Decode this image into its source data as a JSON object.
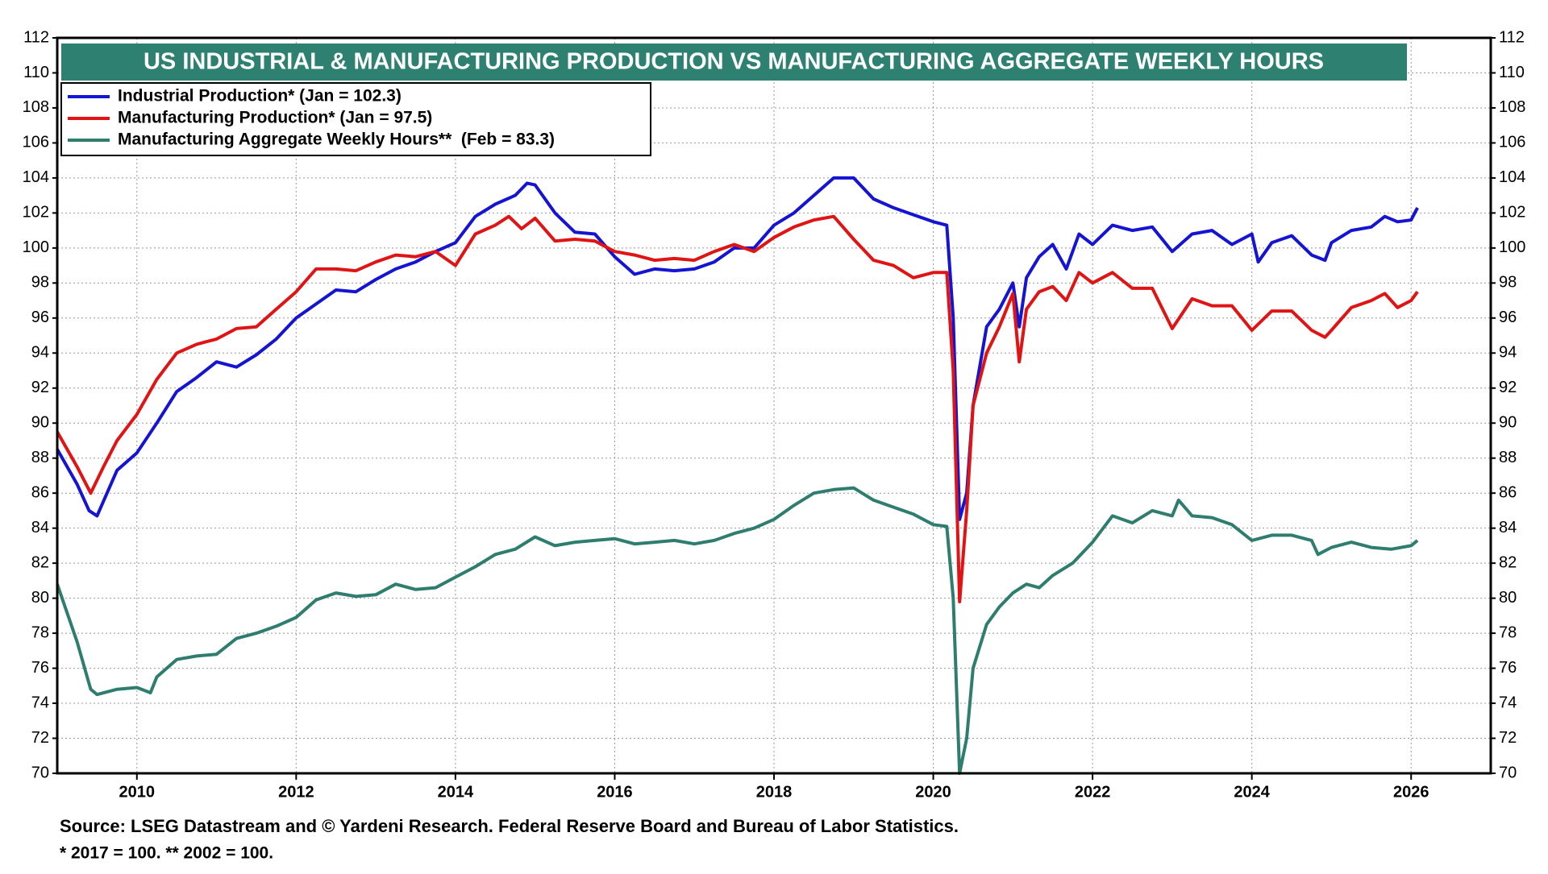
{
  "chart_data": {
    "type": "line",
    "title": "US INDUSTRIAL & MANUFACTURING PRODUCTION VS MANUFACTURING AGGREGATE WEEKLY HOURS",
    "source": "Source: LSEG Datastream and © Yardeni Research. Federal Reserve Board and Bureau of Labor Statistics.",
    "note": "* 2017 = 100.   ** 2002 = 100.",
    "xlim": [
      2009,
      2027
    ],
    "xticks": [
      2010,
      2012,
      2014,
      2016,
      2018,
      2020,
      2022,
      2024,
      2026
    ],
    "ylim": [
      70,
      112
    ],
    "yticks": [
      70,
      72,
      74,
      76,
      78,
      80,
      82,
      84,
      86,
      88,
      90,
      92,
      94,
      96,
      98,
      100,
      102,
      104,
      106,
      108,
      110,
      112
    ],
    "y2lim": [
      70,
      112
    ],
    "y2ticks": [
      70,
      72,
      74,
      76,
      78,
      80,
      82,
      84,
      86,
      88,
      90,
      92,
      94,
      96,
      98,
      100,
      102,
      104,
      106,
      108,
      110,
      112
    ],
    "legend": "upper left",
    "series": [
      {
        "name": "Industrial Production* (Jan = 102.3)",
        "color": "#1414d2",
        "x": [
          2009.0,
          2009.25,
          2009.4,
          2009.5,
          2009.75,
          2010.0,
          2010.25,
          2010.5,
          2010.75,
          2011.0,
          2011.25,
          2011.5,
          2011.75,
          2012.0,
          2012.25,
          2012.5,
          2012.75,
          2013.0,
          2013.25,
          2013.5,
          2013.75,
          2014.0,
          2014.25,
          2014.5,
          2014.75,
          2014.9,
          2015.0,
          2015.25,
          2015.5,
          2015.75,
          2016.0,
          2016.25,
          2016.5,
          2016.75,
          2017.0,
          2017.25,
          2017.5,
          2017.75,
          2018.0,
          2018.25,
          2018.5,
          2018.75,
          2019.0,
          2019.25,
          2019.5,
          2019.75,
          2020.0,
          2020.17,
          2020.25,
          2020.33,
          2020.42,
          2020.5,
          2020.67,
          2020.83,
          2021.0,
          2021.08,
          2021.17,
          2021.33,
          2021.5,
          2021.67,
          2021.83,
          2022.0,
          2022.25,
          2022.5,
          2022.75,
          2023.0,
          2023.25,
          2023.5,
          2023.75,
          2024.0,
          2024.08,
          2024.25,
          2024.5,
          2024.75,
          2024.92,
          2025.0,
          2025.25,
          2025.5,
          2025.67,
          2025.83,
          2026.0,
          2026.08
        ],
        "values": [
          88.5,
          86.5,
          85.0,
          84.7,
          87.3,
          88.3,
          90.0,
          91.8,
          92.6,
          93.5,
          93.2,
          93.9,
          94.8,
          96.0,
          96.8,
          97.6,
          97.5,
          98.2,
          98.8,
          99.2,
          99.8,
          100.3,
          101.8,
          102.5,
          103.0,
          103.7,
          103.6,
          102.0,
          100.9,
          100.8,
          99.5,
          98.5,
          98.8,
          98.7,
          98.8,
          99.2,
          100.0,
          100.0,
          101.3,
          102.0,
          103.0,
          104.0,
          104.0,
          102.8,
          102.3,
          101.9,
          101.5,
          101.3,
          96.0,
          84.5,
          86.0,
          91.0,
          95.5,
          96.5,
          98.0,
          95.5,
          98.3,
          99.5,
          100.2,
          98.8,
          100.8,
          100.2,
          101.3,
          101.0,
          101.2,
          99.8,
          100.8,
          101.0,
          100.2,
          100.8,
          99.2,
          100.3,
          100.7,
          99.6,
          99.3,
          100.3,
          101.0,
          101.2,
          101.8,
          101.5,
          101.6,
          102.3
        ]
      },
      {
        "name": "Manufacturing Production* (Jan = 97.5)",
        "color": "#e01414",
        "x": [
          2009.0,
          2009.25,
          2009.42,
          2009.58,
          2009.75,
          2010.0,
          2010.25,
          2010.5,
          2010.75,
          2011.0,
          2011.25,
          2011.5,
          2011.75,
          2012.0,
          2012.25,
          2012.5,
          2012.75,
          2013.0,
          2013.25,
          2013.5,
          2013.75,
          2014.0,
          2014.25,
          2014.5,
          2014.67,
          2014.83,
          2015.0,
          2015.25,
          2015.5,
          2015.75,
          2016.0,
          2016.25,
          2016.5,
          2016.75,
          2017.0,
          2017.25,
          2017.5,
          2017.75,
          2018.0,
          2018.25,
          2018.5,
          2018.75,
          2019.0,
          2019.25,
          2019.5,
          2019.75,
          2020.0,
          2020.17,
          2020.25,
          2020.33,
          2020.42,
          2020.5,
          2020.67,
          2020.83,
          2021.0,
          2021.08,
          2021.17,
          2021.33,
          2021.5,
          2021.67,
          2021.83,
          2022.0,
          2022.25,
          2022.5,
          2022.75,
          2023.0,
          2023.25,
          2023.5,
          2023.75,
          2024.0,
          2024.25,
          2024.5,
          2024.75,
          2024.92,
          2025.0,
          2025.25,
          2025.5,
          2025.67,
          2025.83,
          2026.0,
          2026.08
        ],
        "values": [
          89.5,
          87.5,
          86.0,
          87.5,
          89.0,
          90.5,
          92.5,
          94.0,
          94.5,
          94.8,
          95.4,
          95.5,
          96.5,
          97.5,
          98.8,
          98.8,
          98.7,
          99.2,
          99.6,
          99.5,
          99.8,
          99.0,
          100.8,
          101.3,
          101.8,
          101.1,
          101.7,
          100.4,
          100.5,
          100.4,
          99.8,
          99.6,
          99.3,
          99.4,
          99.3,
          99.8,
          100.2,
          99.8,
          100.6,
          101.2,
          101.6,
          101.8,
          100.5,
          99.3,
          99.0,
          98.3,
          98.6,
          98.6,
          93.0,
          79.8,
          85.0,
          91.0,
          94.0,
          95.5,
          97.4,
          93.5,
          96.5,
          97.5,
          97.8,
          97.0,
          98.6,
          98.0,
          98.6,
          97.7,
          97.7,
          95.4,
          97.1,
          96.7,
          96.7,
          95.3,
          96.4,
          96.4,
          95.3,
          94.9,
          95.3,
          96.6,
          97.0,
          97.4,
          96.6,
          97.0,
          97.5
        ]
      },
      {
        "name": "Manufacturing Aggregate Weekly Hours**  (Feb = 83.3)",
        "color": "#2e7d6e",
        "x": [
          2009.0,
          2009.25,
          2009.42,
          2009.5,
          2009.75,
          2010.0,
          2010.17,
          2010.25,
          2010.5,
          2010.75,
          2011.0,
          2011.25,
          2011.5,
          2011.75,
          2012.0,
          2012.25,
          2012.5,
          2012.75,
          2013.0,
          2013.25,
          2013.5,
          2013.75,
          2014.0,
          2014.25,
          2014.5,
          2014.75,
          2015.0,
          2015.25,
          2015.5,
          2015.75,
          2016.0,
          2016.25,
          2016.5,
          2016.75,
          2017.0,
          2017.25,
          2017.5,
          2017.75,
          2018.0,
          2018.25,
          2018.5,
          2018.75,
          2019.0,
          2019.25,
          2019.5,
          2019.75,
          2020.0,
          2020.17,
          2020.25,
          2020.33,
          2020.42,
          2020.5,
          2020.67,
          2020.83,
          2021.0,
          2021.17,
          2021.33,
          2021.5,
          2021.75,
          2022.0,
          2022.25,
          2022.5,
          2022.75,
          2023.0,
          2023.08,
          2023.25,
          2023.5,
          2023.75,
          2024.0,
          2024.25,
          2024.5,
          2024.75,
          2024.83,
          2025.0,
          2025.25,
          2025.5,
          2025.75,
          2026.0,
          2026.08
        ],
        "values": [
          80.8,
          77.5,
          74.8,
          74.5,
          74.8,
          74.9,
          74.6,
          75.5,
          76.5,
          76.7,
          76.8,
          77.7,
          78.0,
          78.4,
          78.9,
          79.9,
          80.3,
          80.1,
          80.2,
          80.8,
          80.5,
          80.6,
          81.2,
          81.8,
          82.5,
          82.8,
          83.5,
          83.0,
          83.2,
          83.3,
          83.4,
          83.1,
          83.2,
          83.3,
          83.1,
          83.3,
          83.7,
          84.0,
          84.5,
          85.3,
          86.0,
          86.2,
          86.3,
          85.6,
          85.2,
          84.8,
          84.2,
          84.1,
          80.0,
          70.0,
          72.0,
          76.0,
          78.5,
          79.5,
          80.3,
          80.8,
          80.6,
          81.3,
          82.0,
          83.2,
          84.7,
          84.3,
          85.0,
          84.7,
          85.6,
          84.7,
          84.6,
          84.2,
          83.3,
          83.6,
          83.6,
          83.3,
          82.5,
          82.9,
          83.2,
          82.9,
          82.8,
          83.0,
          83.3
        ]
      }
    ]
  }
}
